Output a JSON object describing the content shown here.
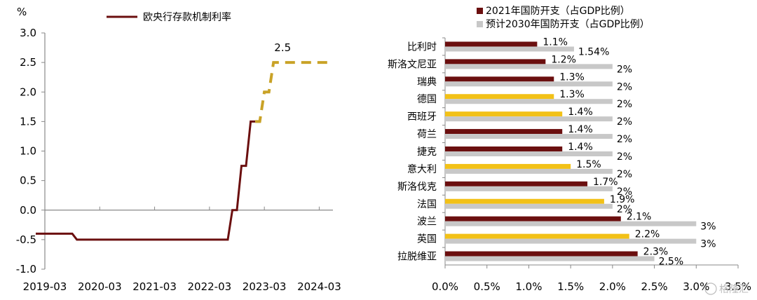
{
  "chart_data": [
    {
      "type": "line",
      "title": "",
      "ylabel": "%",
      "xlabel": "",
      "ylim": [
        -1.0,
        3.0
      ],
      "yticks": [
        "3.0",
        "2.5",
        "2.0",
        "1.5",
        "1.0",
        "0.5",
        "0.0",
        "-0.5",
        "-1.0"
      ],
      "xticks": [
        "2019-03",
        "2020-03",
        "2021-03",
        "2022-03",
        "2023-03",
        "2024-03"
      ],
      "legend": "top",
      "series": [
        {
          "name": "欧央行存款机制利率",
          "color": "#6b0f0f",
          "style": "solid",
          "x": [
            "2019-01",
            "2019-09",
            "2019-10",
            "2022-07",
            "2022-08",
            "2022-09",
            "2022-10",
            "2022-11",
            "2022-12",
            "2023-01"
          ],
          "y": [
            -0.4,
            -0.4,
            -0.5,
            -0.5,
            0.0,
            0.0,
            0.75,
            0.75,
            1.5,
            1.5
          ]
        },
        {
          "name": "",
          "color": "#c9a227",
          "style": "dashed",
          "x": [
            "2023-01",
            "2023-02",
            "2023-03",
            "2023-04",
            "2023-05",
            "2023-06",
            "2024-06"
          ],
          "y": [
            1.5,
            1.5,
            2.0,
            2.0,
            2.5,
            2.5,
            2.5
          ]
        }
      ],
      "annotations": [
        {
          "text": "2.5",
          "x": "2023-07",
          "y": 2.5
        }
      ]
    },
    {
      "type": "bar",
      "orientation": "horizontal",
      "title": "",
      "xlabel": "",
      "xlim": [
        0,
        3.5
      ],
      "xticks": [
        "0.0%",
        "0.5%",
        "1.0%",
        "1.5%",
        "2.0%",
        "2.5%",
        "3.0%",
        "3.5%"
      ],
      "legend": "top",
      "categories": [
        "比利时",
        "斯洛文尼亚",
        "瑞典",
        "德国",
        "西班牙",
        "荷兰",
        "捷克",
        "意大利",
        "斯洛伐克",
        "法国",
        "波兰",
        "英国",
        "拉脱维亚"
      ],
      "series": [
        {
          "name": "2021年国防开支（占GDP比例）",
          "values": [
            1.1,
            1.2,
            1.3,
            1.3,
            1.4,
            1.4,
            1.4,
            1.5,
            1.7,
            1.9,
            2.1,
            2.2,
            2.3
          ],
          "labels": [
            "1.1%",
            "1.2%",
            "1.3%",
            "1.3%",
            "1.4%",
            "1.4%",
            "1.4%",
            "1.5%",
            "1.7%",
            "1.9%",
            "2.1%",
            "2.2%",
            "2.3%"
          ],
          "colors": [
            "#6b0f0f",
            "#6b0f0f",
            "#6b0f0f",
            "#f2c117",
            "#f2c117",
            "#6b0f0f",
            "#6b0f0f",
            "#f2c117",
            "#6b0f0f",
            "#f2c117",
            "#6b0f0f",
            "#f2c117",
            "#6b0f0f"
          ]
        },
        {
          "name": "预计2030年国防开支（占GDP比例）",
          "values": [
            1.54,
            2,
            2,
            2,
            2,
            2,
            2,
            2,
            2,
            2,
            3,
            3,
            2.5
          ],
          "labels": [
            "1.54%",
            "2%",
            "2%",
            "2%",
            "2%",
            "2%",
            "2%",
            "2%",
            "2%",
            "2%",
            "3%",
            "3%",
            "2.5%"
          ],
          "color": "#c8c8c8"
        }
      ]
    }
  ],
  "watermark": "格隆汇"
}
